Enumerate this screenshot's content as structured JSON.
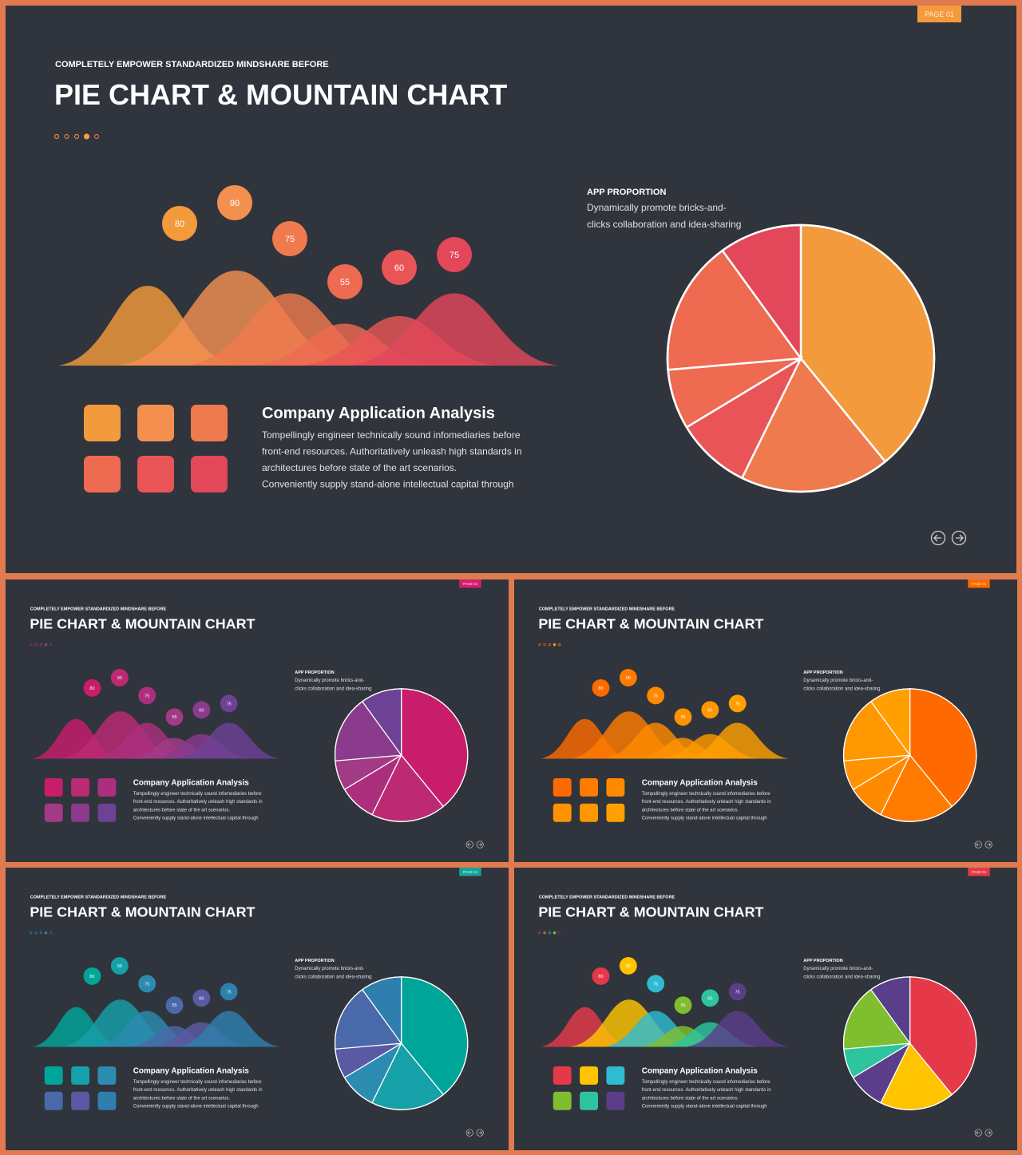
{
  "subtitle": "COMPLETELY  EMPOWER  STANDARDIZED  MINDSHARE  BEFORE",
  "title": "PIE CHART & MOUNTAIN CHART",
  "page_badge": "PAGE 01",
  "section_heading": "Company Application Analysis",
  "body_lines": [
    "Tompellingly engineer technically sound infomediaries before",
    "front-end  resources. Authoritatively unleash high standards in",
    "architectures before state of the art scenarios.",
    "Conveniently supply stand-alone intellectual capital through"
  ],
  "pie_heading": "APP PROPORTION",
  "pie_lines": [
    "Dynamically promote bricks-and-",
    "clicks collaboration and idea-sharing"
  ],
  "chart_data": [
    {
      "type": "area",
      "title": "",
      "x": [
        1,
        2,
        3,
        4,
        5,
        6
      ],
      "values": [
        80,
        90,
        75,
        55,
        60,
        75
      ]
    },
    {
      "type": "pie",
      "title": "APP PROPORTION",
      "values": [
        43,
        20,
        10,
        8,
        18,
        11
      ]
    }
  ],
  "themes": [
    {
      "name": "orange-red",
      "badge": "#f39a3b",
      "dots": [
        "#e88a3a",
        "#e27a45",
        "#ef7f4a",
        "#f0a040",
        "#e56b50"
      ],
      "colors": [
        "#f39a3c",
        "#f39050",
        "#ee7a4d",
        "#ee6a50",
        "#e95556",
        "#e2475a"
      ],
      "pie_order": [
        0,
        2,
        4,
        3,
        3,
        5
      ]
    },
    {
      "name": "magenta-purple",
      "badge": "#d21f6f",
      "dots": [
        "#c51f6a",
        "#b82a77",
        "#a73383",
        "#953a8a",
        "#7e3e95"
      ],
      "colors": [
        "#c81d6b",
        "#bd2a74",
        "#ac2f7e",
        "#a33a86",
        "#8a3b8c",
        "#6d4295"
      ],
      "pie_order": [
        0,
        1,
        2,
        3,
        4,
        5
      ]
    },
    {
      "name": "orange",
      "badge": "#ff6a00",
      "dots": [
        "#ff6d00",
        "#ff7a00",
        "#ff8700",
        "#ff9300",
        "#ff9f00"
      ],
      "colors": [
        "#ff6a00",
        "#ff7b00",
        "#ff8a00",
        "#ff9200",
        "#ff9800",
        "#ffa000"
      ],
      "pie_order": [
        0,
        1,
        2,
        3,
        4,
        5
      ]
    },
    {
      "name": "teal-blue",
      "badge": "#13a59a",
      "dots": [
        "#0ea49b",
        "#129ba6",
        "#2d87a9",
        "#4a6fb0",
        "#5b5aa8"
      ],
      "colors": [
        "#00a59a",
        "#16a0a8",
        "#2c8bb0",
        "#4a69aa",
        "#5a5aa4",
        "#2e7fad"
      ],
      "pie_order": [
        0,
        1,
        2,
        4,
        3,
        5
      ]
    },
    {
      "name": "multicolor",
      "badge": "#e5394a",
      "dots": [
        "#e5394a",
        "#ffc400",
        "#30bcd0",
        "#7fbf2f",
        "#5a3e8a"
      ],
      "colors": [
        "#e5394a",
        "#ffc400",
        "#30bcd0",
        "#7fbf2f",
        "#2ec4a0",
        "#5a3e8a"
      ],
      "pie_order": [
        0,
        1,
        5,
        4,
        3,
        5
      ]
    }
  ]
}
